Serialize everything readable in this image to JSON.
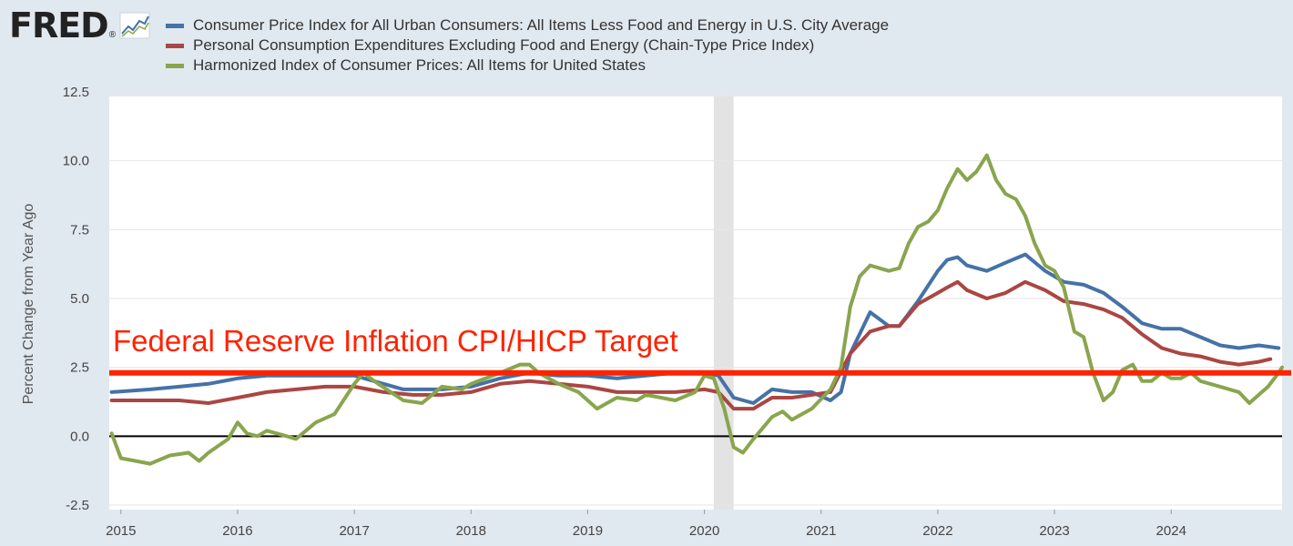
{
  "brand": {
    "name": "FRED",
    "registered": "®"
  },
  "legend": [
    {
      "label": "Consumer Price Index for All Urban Consumers: All Items Less Food and Energy in U.S. City Average",
      "color": "#4572a7"
    },
    {
      "label": "Personal Consumption Expenditures Excluding Food and Energy (Chain-Type Price Index)",
      "color": "#aa4643"
    },
    {
      "label": "Harmonized Index of Consumer Prices: All Items for United States",
      "color": "#89a54e"
    }
  ],
  "chart_data": {
    "type": "line",
    "ylabel": "Percent Change from Year Ago",
    "ylim": [
      -2.5,
      12.5
    ],
    "yticks": [
      "12.5",
      "10.0",
      "7.5",
      "5.0",
      "2.5",
      "0.0",
      "-2.5"
    ],
    "xlim": [
      2014.9,
      2024.95
    ],
    "xticks": [
      "2015",
      "2016",
      "2017",
      "2018",
      "2019",
      "2020",
      "2021",
      "2022",
      "2023",
      "2024"
    ],
    "recession": [
      2020.08,
      2020.25
    ],
    "annotation": {
      "text": "Federal Reserve Inflation CPI/HICP Target",
      "color": "#ff2200",
      "line_value": 2.3
    },
    "zero_line": 0.0,
    "series": [
      {
        "name": "CPI Less Food and Energy",
        "color": "#4572a7",
        "points": [
          [
            2014.92,
            1.6
          ],
          [
            2015.25,
            1.7
          ],
          [
            2015.5,
            1.8
          ],
          [
            2015.75,
            1.9
          ],
          [
            2016,
            2.1
          ],
          [
            2016.25,
            2.2
          ],
          [
            2016.5,
            2.2
          ],
          [
            2016.75,
            2.2
          ],
          [
            2017,
            2.2
          ],
          [
            2017.25,
            1.9
          ],
          [
            2017.42,
            1.7
          ],
          [
            2017.75,
            1.7
          ],
          [
            2018,
            1.8
          ],
          [
            2018.25,
            2.1
          ],
          [
            2018.5,
            2.3
          ],
          [
            2018.75,
            2.2
          ],
          [
            2019,
            2.2
          ],
          [
            2019.25,
            2.1
          ],
          [
            2019.5,
            2.2
          ],
          [
            2019.75,
            2.3
          ],
          [
            2020,
            2.3
          ],
          [
            2020.12,
            2.2
          ],
          [
            2020.25,
            1.4
          ],
          [
            2020.42,
            1.2
          ],
          [
            2020.58,
            1.7
          ],
          [
            2020.75,
            1.6
          ],
          [
            2020.92,
            1.6
          ],
          [
            2021.08,
            1.3
          ],
          [
            2021.17,
            1.6
          ],
          [
            2021.25,
            3.0
          ],
          [
            2021.42,
            4.5
          ],
          [
            2021.58,
            4.0
          ],
          [
            2021.67,
            4.0
          ],
          [
            2021.83,
            4.9
          ],
          [
            2022,
            6.0
          ],
          [
            2022.08,
            6.4
          ],
          [
            2022.17,
            6.5
          ],
          [
            2022.25,
            6.2
          ],
          [
            2022.42,
            6.0
          ],
          [
            2022.58,
            6.3
          ],
          [
            2022.75,
            6.6
          ],
          [
            2022.92,
            6.0
          ],
          [
            2023.08,
            5.6
          ],
          [
            2023.25,
            5.5
          ],
          [
            2023.42,
            5.2
          ],
          [
            2023.58,
            4.7
          ],
          [
            2023.75,
            4.1
          ],
          [
            2023.92,
            3.9
          ],
          [
            2024.08,
            3.9
          ],
          [
            2024.25,
            3.6
          ],
          [
            2024.42,
            3.3
          ],
          [
            2024.58,
            3.2
          ],
          [
            2024.75,
            3.3
          ],
          [
            2024.92,
            3.2
          ]
        ]
      },
      {
        "name": "PCE Excluding Food and Energy",
        "color": "#aa4643",
        "points": [
          [
            2014.92,
            1.3
          ],
          [
            2015.25,
            1.3
          ],
          [
            2015.5,
            1.3
          ],
          [
            2015.75,
            1.2
          ],
          [
            2016,
            1.4
          ],
          [
            2016.25,
            1.6
          ],
          [
            2016.5,
            1.7
          ],
          [
            2016.75,
            1.8
          ],
          [
            2017,
            1.8
          ],
          [
            2017.25,
            1.6
          ],
          [
            2017.5,
            1.5
          ],
          [
            2017.75,
            1.5
          ],
          [
            2018,
            1.6
          ],
          [
            2018.25,
            1.9
          ],
          [
            2018.5,
            2.0
          ],
          [
            2018.75,
            1.9
          ],
          [
            2019,
            1.8
          ],
          [
            2019.25,
            1.6
          ],
          [
            2019.5,
            1.6
          ],
          [
            2019.75,
            1.6
          ],
          [
            2020,
            1.7
          ],
          [
            2020.12,
            1.6
          ],
          [
            2020.25,
            1.0
          ],
          [
            2020.42,
            1.0
          ],
          [
            2020.58,
            1.4
          ],
          [
            2020.75,
            1.4
          ],
          [
            2020.92,
            1.5
          ],
          [
            2021.08,
            1.6
          ],
          [
            2021.25,
            3.0
          ],
          [
            2021.42,
            3.8
          ],
          [
            2021.58,
            4.0
          ],
          [
            2021.67,
            4.0
          ],
          [
            2021.83,
            4.8
          ],
          [
            2022,
            5.2
          ],
          [
            2022.08,
            5.4
          ],
          [
            2022.17,
            5.6
          ],
          [
            2022.25,
            5.3
          ],
          [
            2022.42,
            5.0
          ],
          [
            2022.58,
            5.2
          ],
          [
            2022.75,
            5.6
          ],
          [
            2022.92,
            5.3
          ],
          [
            2023.08,
            4.9
          ],
          [
            2023.25,
            4.8
          ],
          [
            2023.42,
            4.6
          ],
          [
            2023.58,
            4.3
          ],
          [
            2023.75,
            3.7
          ],
          [
            2023.92,
            3.2
          ],
          [
            2024.08,
            3.0
          ],
          [
            2024.25,
            2.9
          ],
          [
            2024.42,
            2.7
          ],
          [
            2024.58,
            2.6
          ],
          [
            2024.75,
            2.7
          ],
          [
            2024.85,
            2.8
          ]
        ]
      },
      {
        "name": "HICP All Items United States",
        "color": "#89a54e",
        "points": [
          [
            2014.92,
            0.1
          ],
          [
            2015,
            -0.8
          ],
          [
            2015.25,
            -1.0
          ],
          [
            2015.42,
            -0.7
          ],
          [
            2015.58,
            -0.6
          ],
          [
            2015.67,
            -0.9
          ],
          [
            2015.75,
            -0.6
          ],
          [
            2015.92,
            -0.1
          ],
          [
            2016,
            0.5
          ],
          [
            2016.08,
            0.1
          ],
          [
            2016.17,
            0.0
          ],
          [
            2016.25,
            0.2
          ],
          [
            2016.42,
            0.0
          ],
          [
            2016.5,
            -0.1
          ],
          [
            2016.67,
            0.5
          ],
          [
            2016.83,
            0.8
          ],
          [
            2017,
            1.9
          ],
          [
            2017.08,
            2.3
          ],
          [
            2017.17,
            2.0
          ],
          [
            2017.42,
            1.3
          ],
          [
            2017.58,
            1.2
          ],
          [
            2017.75,
            1.8
          ],
          [
            2017.92,
            1.7
          ],
          [
            2018,
            1.9
          ],
          [
            2018.25,
            2.3
          ],
          [
            2018.42,
            2.6
          ],
          [
            2018.5,
            2.6
          ],
          [
            2018.58,
            2.3
          ],
          [
            2018.75,
            1.9
          ],
          [
            2018.92,
            1.6
          ],
          [
            2019,
            1.3
          ],
          [
            2019.08,
            1.0
          ],
          [
            2019.25,
            1.4
          ],
          [
            2019.42,
            1.3
          ],
          [
            2019.5,
            1.5
          ],
          [
            2019.75,
            1.3
          ],
          [
            2019.92,
            1.6
          ],
          [
            2020,
            2.2
          ],
          [
            2020.08,
            2.1
          ],
          [
            2020.17,
            1.0
          ],
          [
            2020.25,
            -0.4
          ],
          [
            2020.33,
            -0.6
          ],
          [
            2020.42,
            -0.1
          ],
          [
            2020.5,
            0.3
          ],
          [
            2020.58,
            0.7
          ],
          [
            2020.67,
            0.9
          ],
          [
            2020.75,
            0.6
          ],
          [
            2020.92,
            1.0
          ],
          [
            2021.08,
            1.7
          ],
          [
            2021.17,
            2.5
          ],
          [
            2021.25,
            4.7
          ],
          [
            2021.33,
            5.8
          ],
          [
            2021.42,
            6.2
          ],
          [
            2021.5,
            6.1
          ],
          [
            2021.58,
            6.0
          ],
          [
            2021.67,
            6.1
          ],
          [
            2021.75,
            7.0
          ],
          [
            2021.83,
            7.6
          ],
          [
            2021.92,
            7.8
          ],
          [
            2022,
            8.2
          ],
          [
            2022.08,
            9.0
          ],
          [
            2022.17,
            9.7
          ],
          [
            2022.25,
            9.3
          ],
          [
            2022.33,
            9.6
          ],
          [
            2022.42,
            10.2
          ],
          [
            2022.5,
            9.3
          ],
          [
            2022.58,
            8.8
          ],
          [
            2022.67,
            8.6
          ],
          [
            2022.75,
            8.0
          ],
          [
            2022.83,
            7.0
          ],
          [
            2022.92,
            6.2
          ],
          [
            2023,
            6.0
          ],
          [
            2023.08,
            5.4
          ],
          [
            2023.17,
            3.8
          ],
          [
            2023.25,
            3.6
          ],
          [
            2023.33,
            2.3
          ],
          [
            2023.42,
            1.3
          ],
          [
            2023.5,
            1.6
          ],
          [
            2023.58,
            2.4
          ],
          [
            2023.67,
            2.6
          ],
          [
            2023.75,
            2.0
          ],
          [
            2023.83,
            2.0
          ],
          [
            2023.92,
            2.3
          ],
          [
            2024,
            2.1
          ],
          [
            2024.08,
            2.1
          ],
          [
            2024.17,
            2.3
          ],
          [
            2024.25,
            2.0
          ],
          [
            2024.42,
            1.8
          ],
          [
            2024.58,
            1.6
          ],
          [
            2024.67,
            1.2
          ],
          [
            2024.75,
            1.5
          ],
          [
            2024.83,
            1.8
          ],
          [
            2024.92,
            2.3
          ],
          [
            2024.95,
            2.5
          ]
        ]
      }
    ]
  }
}
